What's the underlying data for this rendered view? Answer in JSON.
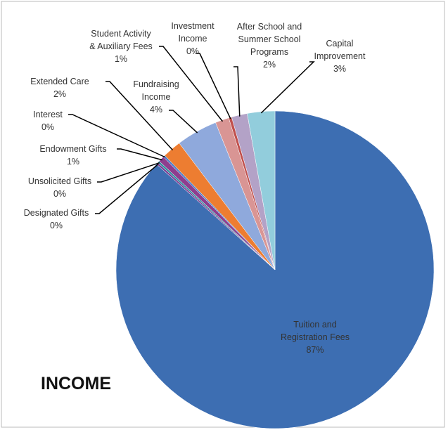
{
  "chart_data": {
    "type": "pie",
    "title": "INCOME",
    "categories": [
      "Tuition and\nRegistration Fees",
      "Designated Gifts",
      "Unsolicited Gifts",
      "Endowment Gifts",
      "Interest",
      "Extended Care",
      "Fundraising\nIncome",
      "Student Activity\n& Auxiliary Fees",
      "Investment\nIncome",
      "After School and\nSummer School\nPrograms",
      "Capital\nImprovement"
    ],
    "values": [
      86.6,
      0.2,
      0.2,
      0.6,
      0.2,
      1.9,
      4.2,
      1.4,
      0.3,
      1.6,
      2.8
    ],
    "value_labels": [
      "87%",
      "0%",
      "0%",
      "1%",
      "0%",
      "2%",
      "4%",
      "1%",
      "0%",
      "2%",
      "3%"
    ],
    "colors": [
      "#3d6eb2",
      "#7b3d94",
      "#2f8f9e",
      "#8e3d8e",
      "#4a7bc8",
      "#ed7d31",
      "#8fa9dc",
      "#d99594",
      "#c0504d",
      "#b3a2c7",
      "#92cddc"
    ]
  }
}
